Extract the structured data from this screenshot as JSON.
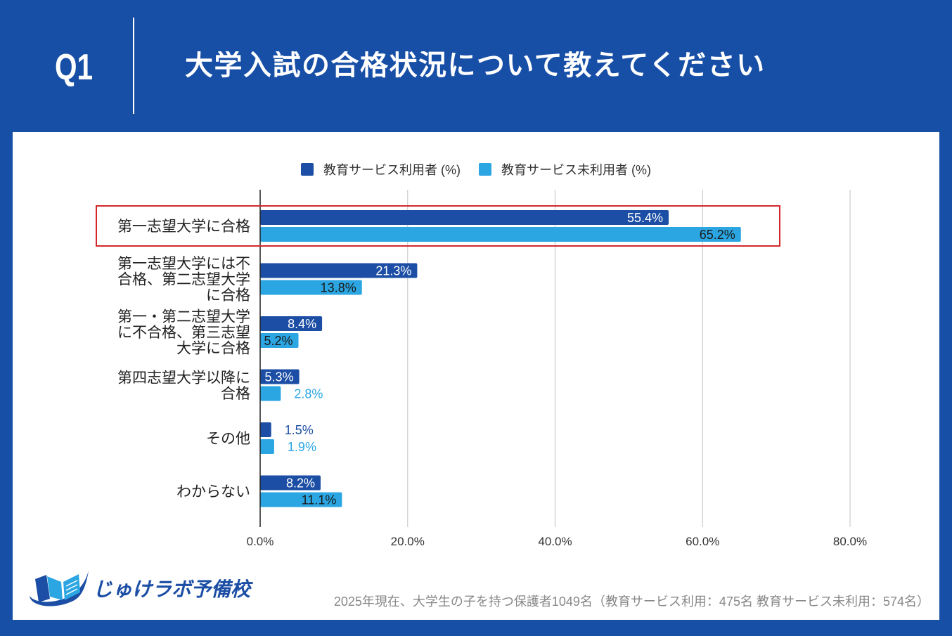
{
  "header": {
    "question_number": "Q1"
  },
  "colors": {
    "page_background": "#174ea6",
    "panel_background": "#ffffff",
    "category_text": "#222222",
    "gridline": "#cccccc",
    "axis": "#222222",
    "note_text": "#888888",
    "highlight_border": "#d4272c",
    "logo_dark": "#1b4ea4",
    "logo_light": "#2ba6e2"
  },
  "chart_data": {
    "type": "bar",
    "orientation": "horizontal",
    "title": "大学入試の合格状況について教えてください",
    "categories": [
      "第一志望大学に合格",
      "第一志望大学には不合格、第二志望大学に合格",
      "第一・第二志望大学に不合格、第三志望大学に合格",
      "第四志望大学以降に合格",
      "その他",
      "わからない"
    ],
    "series": [
      {
        "name": "教育サービス利用者 (%)",
        "color": "#1b4ea4",
        "values": [
          55.4,
          21.3,
          8.4,
          5.3,
          1.5,
          8.2
        ]
      },
      {
        "name": "教育サービス未利用者 (%)",
        "color": "#2ba6e2",
        "values": [
          65.2,
          13.8,
          5.2,
          2.8,
          1.9,
          11.1
        ]
      }
    ],
    "xlim": [
      0,
      80
    ],
    "xticks": [
      0,
      20,
      40,
      60,
      80
    ],
    "xtick_labels": [
      "0.0%",
      "20.0%",
      "40.0%",
      "60.0%",
      "80.0%"
    ],
    "data_labels": true,
    "grid": true,
    "legend": "top-center",
    "highlighted_category_index": 0
  },
  "footer": {
    "logo_text": "じゅけラボ予備校",
    "note": "2025年現在、大学生の子を持つ保護者1049名（教育サービス利用：475名 教育サービス未利用：574名）"
  }
}
